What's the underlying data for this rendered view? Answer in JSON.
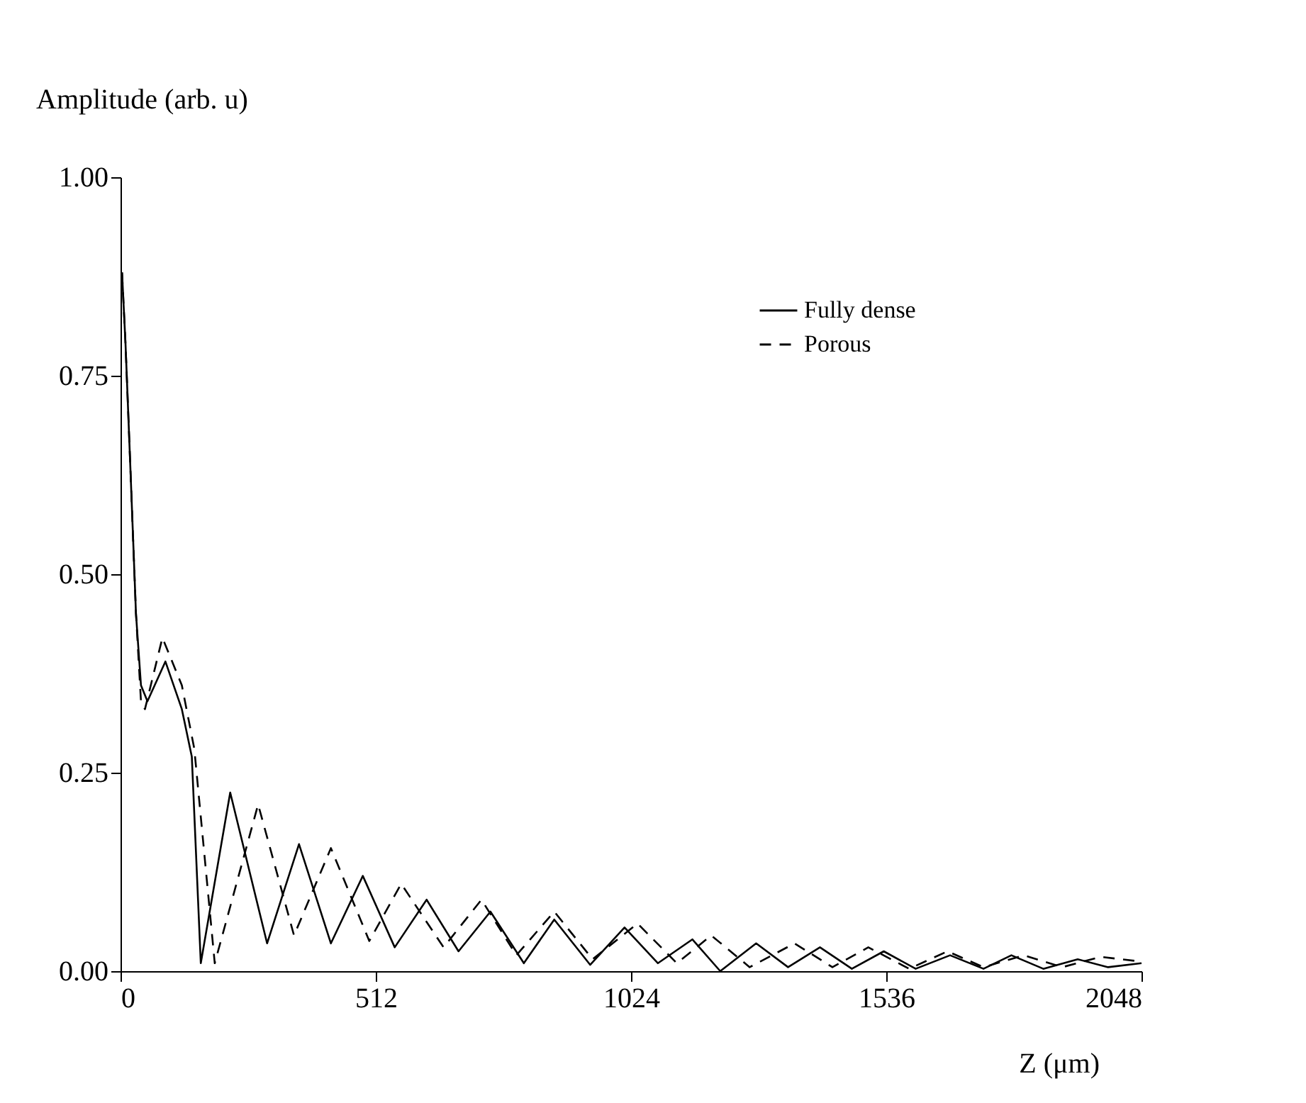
{
  "chart_data": {
    "type": "line",
    "xlabel": "Z (μm)",
    "ylabel": "Amplitude (arb. u)",
    "xlim": [
      0,
      2048
    ],
    "xticks": [
      0,
      512,
      1024,
      1536,
      2048
    ],
    "ylim": [
      0,
      1
    ],
    "yticks": [
      {
        "value": 0,
        "label": "0.00"
      },
      {
        "value": 0.25,
        "label": "0.25"
      },
      {
        "value": 0.5,
        "label": "0.50"
      },
      {
        "value": 0.75,
        "label": "0.75"
      },
      {
        "value": 1.0,
        "label": "1.00"
      }
    ],
    "legend": "top right",
    "marker": "none",
    "series": [
      {
        "name": "Fully dense",
        "color": "#000000",
        "line_style": "solid",
        "x": [
          3,
          10,
          20,
          31,
          41,
          54,
          90,
          123,
          143,
          161,
          220,
          294,
          358,
          422,
          486,
          550,
          614,
          678,
          742,
          809,
          870,
          942,
          1011,
          1078,
          1147,
          1203,
          1275,
          1339,
          1403,
          1467,
          1531,
          1595,
          1664,
          1731,
          1787,
          1851,
          1920,
          1981,
          2048
        ],
        "values": [
          0.88,
          0.79,
          0.63,
          0.45,
          0.36,
          0.34,
          0.39,
          0.33,
          0.27,
          0.01,
          0.225,
          0.035,
          0.16,
          0.035,
          0.12,
          0.03,
          0.09,
          0.025,
          0.075,
          0.01,
          0.065,
          0.008,
          0.055,
          0.01,
          0.04,
          0.0,
          0.035,
          0.005,
          0.03,
          0.003,
          0.025,
          0.003,
          0.02,
          0.003,
          0.02,
          0.003,
          0.015,
          0.005,
          0.01
        ]
      },
      {
        "name": "Porous",
        "color": "#000000",
        "line_style": "dashed",
        "x": [
          3,
          10,
          20,
          31,
          41,
          49,
          84,
          123,
          148,
          189,
          276,
          348,
          422,
          499,
          563,
          648,
          724,
          794,
          870,
          947,
          1037,
          1116,
          1185,
          1262,
          1352,
          1428,
          1500,
          1582,
          1659,
          1731,
          1812,
          1889,
          1966,
          2048
        ],
        "values": [
          0.88,
          0.79,
          0.63,
          0.45,
          0.34,
          0.33,
          0.42,
          0.36,
          0.28,
          0.01,
          0.21,
          0.045,
          0.155,
          0.038,
          0.11,
          0.03,
          0.09,
          0.02,
          0.075,
          0.015,
          0.06,
          0.01,
          0.045,
          0.005,
          0.035,
          0.005,
          0.03,
          0.003,
          0.025,
          0.005,
          0.02,
          0.005,
          0.018,
          0.012
        ]
      }
    ]
  }
}
